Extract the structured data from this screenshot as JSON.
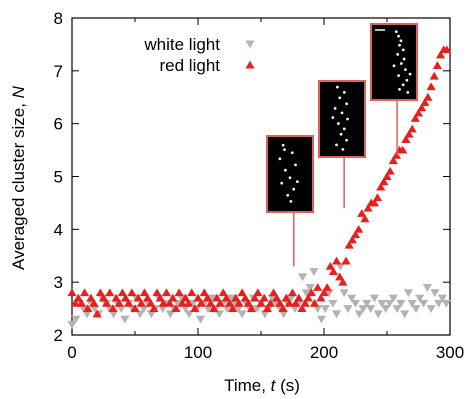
{
  "chart_data": {
    "type": "scatter",
    "xlabel_main": "Time, ",
    "xlabel_var": "t",
    "xlabel_unit": " (s)",
    "ylabel_main": "Averaged cluster size, ",
    "ylabel_var": "N",
    "xlim": [
      0,
      300
    ],
    "ylim": [
      2,
      8
    ],
    "xticks": [
      0,
      100,
      200,
      300
    ],
    "yticks": [
      2,
      3,
      4,
      5,
      6,
      7,
      8
    ],
    "legend_position": "top-left",
    "series": [
      {
        "name": "white light",
        "marker": "triangle-down",
        "color": "#b3b3b3",
        "x": [
          0,
          3,
          6,
          9,
          12,
          15,
          18,
          21,
          24,
          27,
          30,
          33,
          36,
          39,
          42,
          45,
          48,
          51,
          54,
          57,
          60,
          63,
          66,
          69,
          72,
          75,
          78,
          81,
          84,
          87,
          90,
          93,
          96,
          99,
          102,
          105,
          108,
          111,
          114,
          117,
          120,
          123,
          126,
          129,
          132,
          135,
          138,
          141,
          144,
          147,
          150,
          153,
          156,
          159,
          162,
          165,
          168,
          171,
          174,
          177,
          180,
          183,
          186,
          189,
          192,
          195,
          198,
          201,
          204,
          207,
          210,
          213,
          216,
          219,
          222,
          225,
          228,
          231,
          234,
          237,
          240,
          243,
          246,
          249,
          252,
          255,
          258,
          261,
          264,
          267,
          270,
          273,
          276,
          279,
          282,
          285,
          288,
          291,
          294,
          297
        ],
        "y": [
          2.2,
          2.3,
          2.6,
          2.5,
          2.4,
          2.6,
          2.5,
          2.4,
          2.7,
          2.6,
          2.5,
          2.4,
          2.6,
          2.5,
          2.3,
          2.6,
          2.5,
          2.7,
          2.4,
          2.5,
          2.6,
          2.4,
          2.5,
          2.7,
          2.5,
          2.6,
          2.4,
          2.5,
          2.6,
          2.7,
          2.5,
          2.4,
          2.6,
          2.5,
          2.3,
          2.6,
          2.5,
          2.7,
          2.5,
          2.4,
          2.6,
          2.5,
          2.7,
          2.6,
          2.5,
          2.4,
          2.6,
          2.5,
          2.7,
          2.5,
          2.6,
          2.4,
          2.5,
          2.7,
          2.6,
          2.5,
          2.4,
          2.6,
          2.7,
          2.5,
          2.6,
          3.1,
          2.8,
          2.9,
          3.2,
          2.5,
          2.3,
          2.5,
          2.8,
          2.6,
          2.4,
          3.3,
          2.8,
          2.5,
          2.7,
          2.6,
          2.4,
          2.5,
          2.6,
          2.5,
          2.7,
          2.4,
          2.6,
          2.5,
          2.6,
          2.7,
          2.5,
          2.6,
          2.4,
          2.8,
          2.6,
          2.5,
          2.7,
          2.6,
          2.9,
          2.5,
          2.8,
          2.6,
          2.7,
          2.6
        ]
      },
      {
        "name": "red light",
        "marker": "triangle-up",
        "color": "#e8201d",
        "x": [
          0,
          2.5,
          5,
          7.5,
          10,
          12.5,
          15,
          17.5,
          20,
          22.5,
          25,
          27.5,
          30,
          32.5,
          35,
          37.5,
          40,
          42.5,
          45,
          47.5,
          50,
          52.5,
          55,
          57.5,
          60,
          62.5,
          65,
          67.5,
          70,
          72.5,
          75,
          77.5,
          80,
          82.5,
          85,
          87.5,
          90,
          92.5,
          95,
          97.5,
          100,
          102.5,
          105,
          107.5,
          110,
          112.5,
          115,
          117.5,
          120,
          122.5,
          125,
          127.5,
          130,
          132.5,
          135,
          137.5,
          140,
          142.5,
          145,
          147.5,
          150,
          152.5,
          155,
          157.5,
          160,
          162.5,
          165,
          167.5,
          170,
          172.5,
          175,
          177.5,
          180,
          182.5,
          185,
          187.5,
          190,
          192.5,
          195,
          197.5,
          200,
          202.5,
          205,
          207.5,
          210,
          212.5,
          215,
          217.5,
          220,
          222.5,
          225,
          227.5,
          230,
          232.5,
          235,
          237.5,
          240,
          242.5,
          245,
          247.5,
          250,
          252.5,
          255,
          257.5,
          260,
          262.5,
          265,
          267.5,
          270,
          272.5,
          275,
          277.5,
          280,
          282.5,
          285,
          287.5,
          290,
          292.5,
          295,
          297.5
        ],
        "y": [
          2.8,
          2.6,
          2.7,
          2.6,
          2.8,
          2.5,
          2.7,
          2.6,
          2.4,
          2.8,
          2.7,
          2.6,
          2.8,
          2.5,
          2.7,
          2.6,
          2.8,
          2.7,
          2.6,
          2.8,
          2.5,
          2.7,
          2.6,
          2.8,
          2.7,
          2.6,
          2.5,
          2.8,
          2.7,
          2.6,
          2.8,
          2.6,
          2.7,
          2.5,
          2.8,
          2.6,
          2.7,
          2.6,
          2.8,
          2.5,
          2.7,
          2.6,
          2.8,
          2.7,
          2.6,
          2.5,
          2.7,
          2.6,
          2.8,
          2.7,
          2.6,
          2.5,
          2.7,
          2.6,
          2.8,
          2.7,
          2.6,
          2.5,
          2.7,
          2.8,
          2.6,
          2.7,
          2.5,
          2.6,
          2.8,
          2.7,
          2.6,
          2.5,
          2.7,
          2.6,
          2.8,
          2.6,
          2.7,
          2.5,
          2.6,
          2.7,
          2.8,
          2.6,
          2.9,
          2.7,
          2.8,
          2.9,
          3.3,
          3.2,
          3.4,
          3.1,
          3.0,
          3.4,
          3.7,
          3.8,
          3.9,
          4.0,
          4.3,
          4.2,
          4.4,
          4.5,
          4.5,
          4.6,
          4.8,
          4.9,
          5.0,
          5.1,
          5.3,
          5.4,
          5.5,
          5.5,
          5.7,
          5.8,
          5.9,
          6.1,
          6.2,
          6.3,
          6.4,
          6.5,
          6.7,
          6.9,
          7.1,
          7.3,
          7.4,
          7.4
        ]
      }
    ],
    "insets": [
      {
        "name": "inset-1",
        "pointer_x": 176,
        "pointer_y": 3.3,
        "dots": [
          [
            0.35,
            0.12
          ],
          [
            0.55,
            0.22
          ],
          [
            0.28,
            0.3
          ],
          [
            0.62,
            0.38
          ],
          [
            0.4,
            0.45
          ],
          [
            0.5,
            0.55
          ],
          [
            0.32,
            0.62
          ],
          [
            0.58,
            0.7
          ],
          [
            0.45,
            0.78
          ],
          [
            0.52,
            0.86
          ],
          [
            0.38,
            0.18
          ],
          [
            0.66,
            0.6
          ]
        ]
      },
      {
        "name": "inset-2",
        "pointer_x": 216,
        "pointer_y": 4.4,
        "dots": [
          [
            0.4,
            0.08
          ],
          [
            0.55,
            0.15
          ],
          [
            0.45,
            0.22
          ],
          [
            0.6,
            0.3
          ],
          [
            0.35,
            0.36
          ],
          [
            0.5,
            0.42
          ],
          [
            0.62,
            0.5
          ],
          [
            0.42,
            0.56
          ],
          [
            0.55,
            0.63
          ],
          [
            0.48,
            0.7
          ],
          [
            0.6,
            0.78
          ],
          [
            0.38,
            0.84
          ],
          [
            0.52,
            0.9
          ],
          [
            0.3,
            0.48
          ]
        ]
      },
      {
        "name": "inset-3",
        "pointer_x": 258,
        "pointer_y": 5.4,
        "dots": [
          [
            0.55,
            0.1
          ],
          [
            0.6,
            0.16
          ],
          [
            0.65,
            0.22
          ],
          [
            0.62,
            0.28
          ],
          [
            0.7,
            0.34
          ],
          [
            0.58,
            0.4
          ],
          [
            0.72,
            0.46
          ],
          [
            0.66,
            0.52
          ],
          [
            0.75,
            0.6
          ],
          [
            0.6,
            0.68
          ],
          [
            0.78,
            0.74
          ],
          [
            0.7,
            0.8
          ],
          [
            0.62,
            0.86
          ],
          [
            0.8,
            0.9
          ],
          [
            0.5,
            0.55
          ],
          [
            0.85,
            0.66
          ]
        ]
      }
    ]
  }
}
